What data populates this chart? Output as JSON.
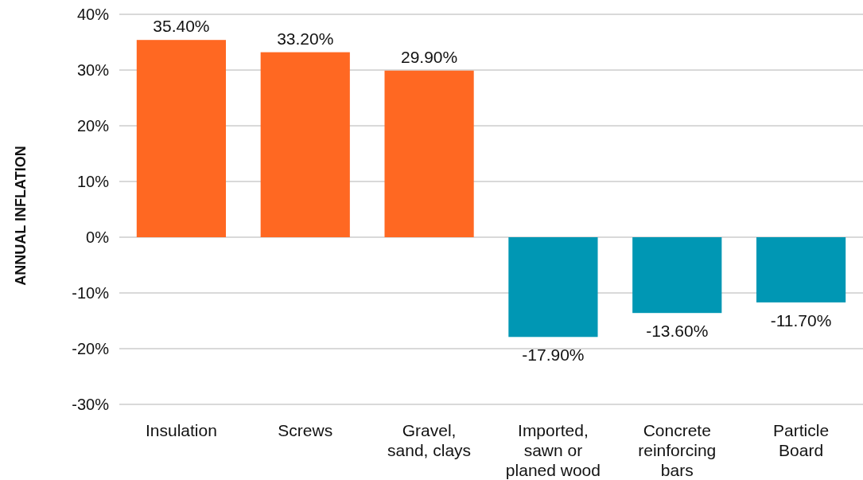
{
  "chart_data": {
    "type": "bar",
    "ylabel": "ANNUAL INFLATION",
    "categories": [
      "Insulation",
      "Screws",
      "Gravel, sand, clays",
      "Imported, sawn or planed wood",
      "Concrete reinforcing bars",
      "Particle Board"
    ],
    "values": [
      35.4,
      33.2,
      29.9,
      -17.9,
      -13.6,
      -11.7
    ],
    "colors": [
      "#ff6822",
      "#ff6822",
      "#ff6822",
      "#0097b4",
      "#0097b4",
      "#0097b4"
    ],
    "value_labels": [
      "35.40%",
      "33.20%",
      "29.90%",
      "-17.90%",
      "-13.60%",
      "-11.70%"
    ],
    "ylim": [
      -30,
      40
    ],
    "yticks": [
      {
        "value": -30,
        "label": "-30%"
      },
      {
        "value": -20,
        "label": "-20%"
      },
      {
        "value": -10,
        "label": "-10%"
      },
      {
        "value": 0,
        "label": "0%"
      },
      {
        "value": 10,
        "label": "10%"
      },
      {
        "value": 20,
        "label": "20%"
      },
      {
        "value": 30,
        "label": "30%"
      },
      {
        "value": 40,
        "label": "40%"
      }
    ],
    "grid": "y"
  }
}
